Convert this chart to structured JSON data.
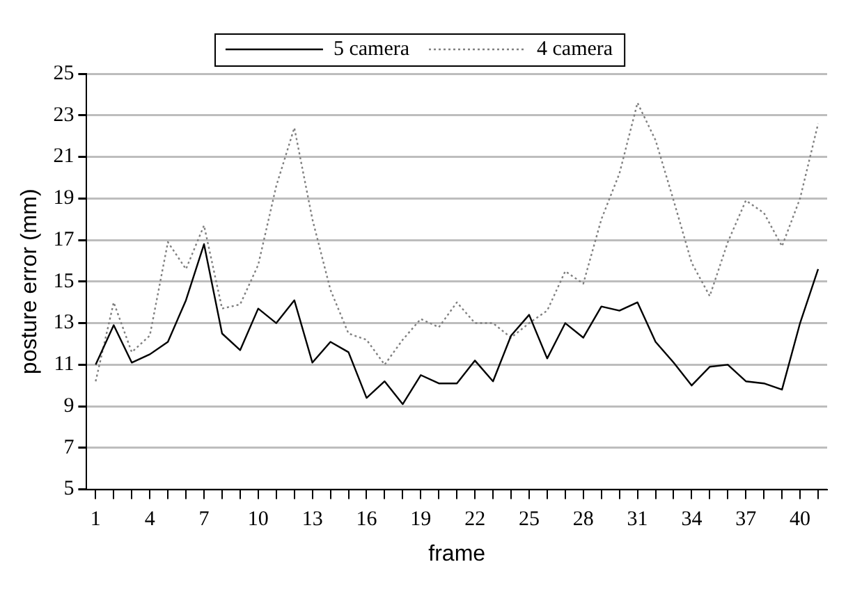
{
  "chart_data": {
    "type": "line",
    "xlabel": "frame",
    "ylabel": "posture error (mm)",
    "categories": [
      "1",
      null,
      null,
      "4",
      null,
      null,
      "7",
      null,
      null,
      "10",
      null,
      null,
      "13",
      null,
      null,
      "16",
      null,
      null,
      "19",
      null,
      null,
      "22",
      null,
      null,
      "25",
      null,
      null,
      "28",
      null,
      null,
      "31",
      null,
      null,
      "34",
      null,
      null,
      "37",
      null,
      null,
      "40",
      null
    ],
    "series": [
      {
        "name": "5 camera",
        "color": "#000000",
        "line_style": "solid",
        "values": [
          11,
          12.9,
          11.1,
          11.5,
          12.1,
          14.1,
          16.8,
          12.5,
          11.7,
          13.7,
          13,
          14.1,
          11.1,
          12.1,
          11.6,
          9.4,
          10.2,
          9.1,
          10.5,
          10.1,
          10.1,
          11.2,
          10.2,
          12.4,
          13.4,
          11.3,
          13,
          12.3,
          13.8,
          13.6,
          14,
          12.1,
          11.1,
          10,
          10.9,
          11,
          10.2,
          10.1,
          9.8,
          13,
          15.6
        ]
      },
      {
        "name": "4 camera",
        "color": "#808080",
        "line_style": "dotted",
        "values": [
          10.2,
          14,
          11.6,
          12.4,
          16.9,
          15.6,
          17.7,
          13.7,
          13.9,
          15.8,
          19.6,
          22.4,
          18,
          14.6,
          12.5,
          12.2,
          11,
          12.2,
          13.2,
          12.8,
          14,
          13,
          13,
          12.3,
          13,
          13.6,
          15.5,
          14.9,
          18,
          20.2,
          23.6,
          21.8,
          18.9,
          15.9,
          14.3,
          16.9,
          18.9,
          18.3,
          16.7,
          19,
          22.6
        ]
      }
    ],
    "ylim": [
      5,
      25
    ],
    "yticks": [
      5,
      7,
      9,
      11,
      13,
      15,
      17,
      19,
      21,
      23,
      25
    ],
    "grid": "y",
    "legend": "top",
    "marker": "none"
  }
}
